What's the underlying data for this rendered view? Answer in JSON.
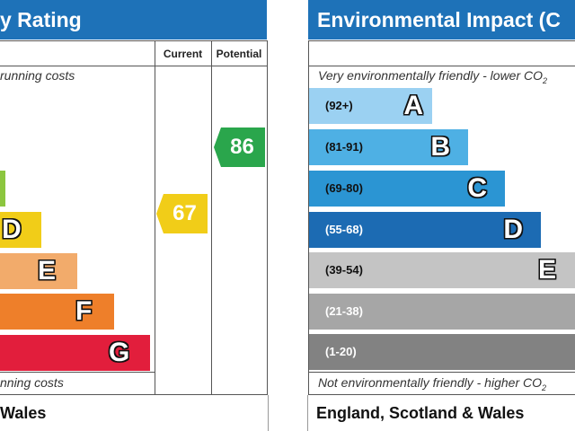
{
  "left_panel": {
    "title": "y Rating",
    "col_current": "Current",
    "col_potential": "Potential",
    "top_caption": "running costs",
    "bottom_caption": "nning costs",
    "footer": "Wales",
    "current_value": "67",
    "potential_value": "86",
    "bars": [
      {
        "letter": "D",
        "color": "#f1cd18"
      },
      {
        "letter": "E",
        "color": "#f2ab6b"
      },
      {
        "letter": "F",
        "color": "#ee7f2a"
      },
      {
        "letter": "G",
        "color": "#e21e3c"
      }
    ],
    "colors": {
      "c_bar": "#8cc63f",
      "current": "#f1cd18",
      "potential": "#2aa64c"
    }
  },
  "right_panel": {
    "title": "Environmental Impact (C",
    "top_caption": "Very environmentally friendly - lower CO",
    "top_sub": "2",
    "bottom_caption": "Not environmentally friendly - higher CO",
    "bottom_sub": "2",
    "footer": "England, Scotland & Wales",
    "bars": [
      {
        "band": "(92+)",
        "letter": "A",
        "color": "#9bd1f2"
      },
      {
        "band": "(81-91)",
        "letter": "B",
        "color": "#4eb0e4"
      },
      {
        "band": "(69-80)",
        "letter": "C",
        "color": "#2b95d3"
      },
      {
        "band": "(55-68)",
        "letter": "D",
        "color": "#1c6bb3"
      },
      {
        "band": "(39-54)",
        "letter": "E",
        "color": "#c4c4c4"
      },
      {
        "band": "(21-38)",
        "letter": "F",
        "color": "#a6a6a6"
      },
      {
        "band": "(1-20)",
        "letter": "G",
        "color": "#828282"
      }
    ]
  }
}
